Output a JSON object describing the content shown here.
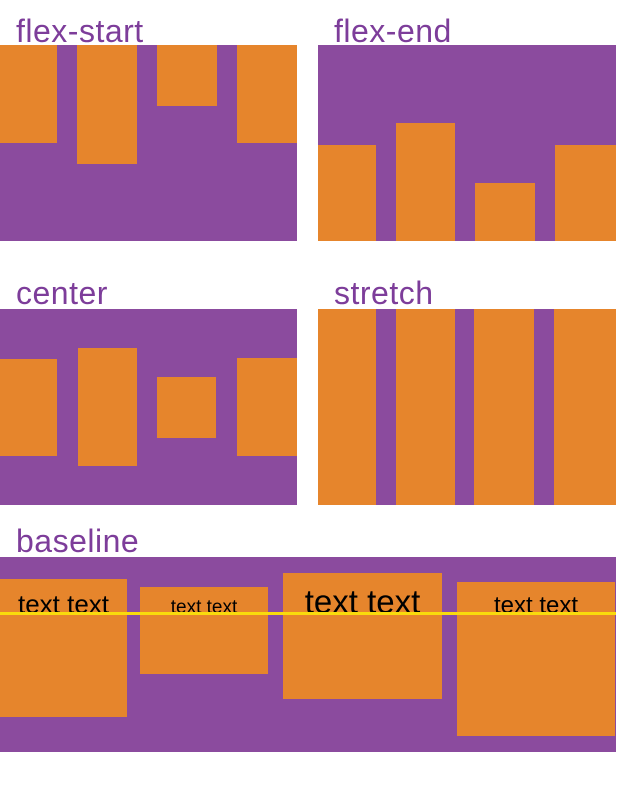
{
  "figure": {
    "panels": [
      {
        "id": "flex-start",
        "title": "flex-start"
      },
      {
        "id": "flex-end",
        "title": "flex-end"
      },
      {
        "id": "center",
        "title": "center"
      },
      {
        "id": "stretch",
        "title": "stretch"
      },
      {
        "id": "baseline",
        "title": "baseline",
        "items": [
          {
            "label": "text text"
          },
          {
            "label": "text text"
          },
          {
            "label": "text text"
          },
          {
            "label": "text text"
          }
        ]
      }
    ],
    "colors": {
      "container_purple": "#8B4B9E",
      "item_orange": "#E6852C",
      "title_text_purple": "#7D3D9A",
      "baseline_marker_yellow": "#F9DB0C",
      "item_label_black": "#000000",
      "page_background": "#FFFFFF"
    }
  }
}
